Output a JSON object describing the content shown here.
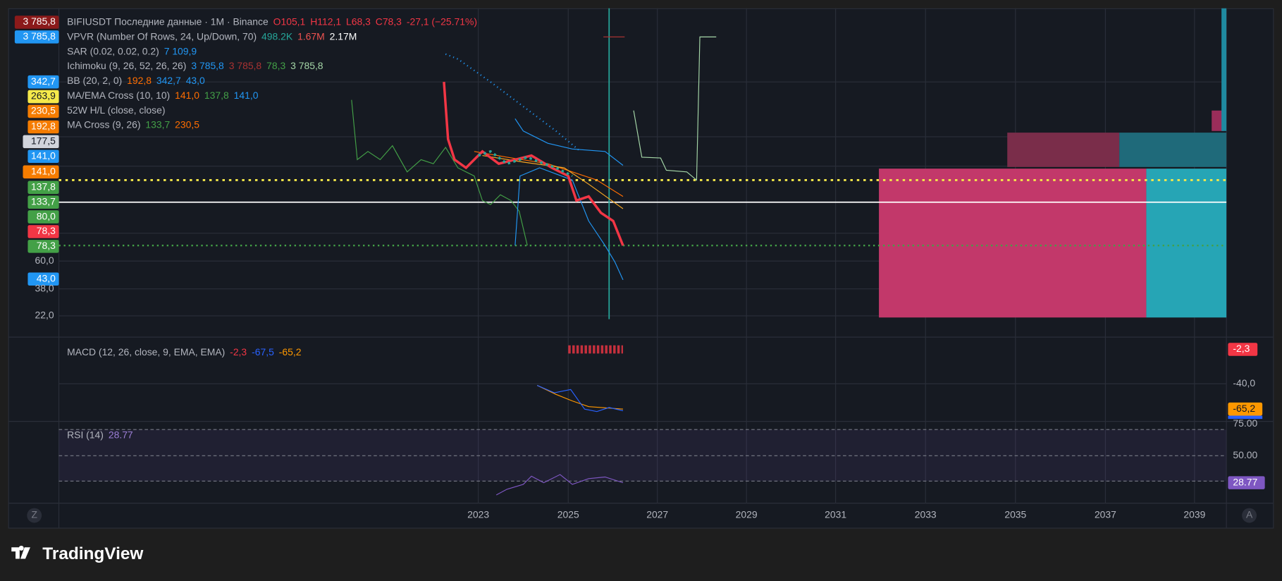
{
  "legend": [
    {
      "parts": [
        {
          "text": "BIFIUSDT Последние данные · 1M · Binance",
          "color": "#b2b5be"
        },
        {
          "text": "O105,1",
          "color": "#f23645"
        },
        {
          "text": "H112,1",
          "color": "#f23645"
        },
        {
          "text": "L68,3",
          "color": "#f23645"
        },
        {
          "text": "C78,3",
          "color": "#f23645"
        },
        {
          "text": "-27,1 (−25.71%)",
          "color": "#f23645"
        }
      ]
    },
    {
      "parts": [
        {
          "text": "VPVR (Number Of Rows, 24, Up/Down, 70)",
          "color": "#b2b5be"
        },
        {
          "text": "498.2K",
          "color": "#26a69a"
        },
        {
          "text": "1.67M",
          "color": "#ef5350"
        },
        {
          "text": "2.17M",
          "color": "#ffffff"
        }
      ]
    },
    {
      "parts": [
        {
          "text": "SAR (0.02, 0.02, 0.2)",
          "color": "#b2b5be"
        },
        {
          "text": "7 109,9",
          "color": "#2196f3"
        }
      ]
    },
    {
      "parts": [
        {
          "text": "Ichimoku (9, 26, 52, 26, 26)",
          "color": "#b2b5be"
        },
        {
          "text": "3 785,8",
          "color": "#2196f3"
        },
        {
          "text": "3 785,8",
          "color": "#a83232"
        },
        {
          "text": "78,3",
          "color": "#43a047"
        },
        {
          "text": "3 785,8",
          "color": "#a5d6a7"
        }
      ]
    },
    {
      "parts": [
        {
          "text": "BB (20, 2, 0)",
          "color": "#b2b5be"
        },
        {
          "text": "192,8",
          "color": "#ff6d00"
        },
        {
          "text": "342,7",
          "color": "#2196f3"
        },
        {
          "text": "43,0",
          "color": "#2196f3"
        }
      ]
    },
    {
      "parts": [
        {
          "text": "MA/EMA Cross (10, 10)",
          "color": "#b2b5be"
        },
        {
          "text": "141,0",
          "color": "#ff6d00"
        },
        {
          "text": "137,8",
          "color": "#43a047"
        },
        {
          "text": "141,0",
          "color": "#2196f3"
        }
      ]
    },
    {
      "parts": [
        {
          "text": "52W H/L (close, close)",
          "color": "#b2b5be"
        }
      ]
    },
    {
      "parts": [
        {
          "text": "MA Cross (9, 26)",
          "color": "#b2b5be"
        },
        {
          "text": "133,7",
          "color": "#43a047"
        },
        {
          "text": "230,5",
          "color": "#ff6d00"
        }
      ]
    }
  ],
  "price_labels": [
    {
      "text": "3 785,8",
      "bg": "#8b1a1a",
      "fg": "#ffffff"
    },
    {
      "text": "3 785,8",
      "bg": "#2196f3",
      "fg": "#ffffff"
    },
    {
      "text": "342,7",
      "bg": "#2196f3",
      "fg": "#ffffff"
    },
    {
      "text": "263,9",
      "bg": "#f5e94a",
      "fg": "#131722"
    },
    {
      "text": "230,5",
      "bg": "#f57c00",
      "fg": "#ffffff"
    },
    {
      "text": "192,8",
      "bg": "#f57c00",
      "fg": "#ffffff"
    },
    {
      "text": "177,5",
      "bg": "#d1d4dc",
      "fg": "#131722"
    },
    {
      "text": "141,0",
      "bg": "#2196f3",
      "fg": "#ffffff"
    },
    {
      "text": "141,0",
      "bg": "#f57c00",
      "fg": "#ffffff"
    },
    {
      "text": "137,8",
      "bg": "#43a047",
      "fg": "#ffffff"
    },
    {
      "text": "133,7",
      "bg": "#43a047",
      "fg": "#ffffff"
    },
    {
      "text": "80,0",
      "bg": "#43a047",
      "fg": "#ffffff"
    },
    {
      "text": "78,3",
      "bg": "#f23645",
      "fg": "#ffffff"
    },
    {
      "text": "78,3",
      "bg": "#43a047",
      "fg": "#ffffff"
    },
    {
      "text": "43,0",
      "bg": "#2196f3",
      "fg": "#ffffff"
    }
  ],
  "price_axis": [
    "60,0",
    "38,0",
    "22,0"
  ],
  "macd": {
    "title": "MACD (12, 26, close, 9, EMA, EMA)",
    "values": [
      {
        "text": "-2,3",
        "color": "#f23645"
      },
      {
        "text": "-67,5",
        "color": "#2962ff"
      },
      {
        "text": "-65,2",
        "color": "#ff9800"
      }
    ],
    "axis": [
      "-2,3",
      "-40,0",
      "-65,2"
    ]
  },
  "rsi": {
    "title": "RSI (14)",
    "value": "28.77",
    "axis": [
      "75.00",
      "50.00",
      "28.77"
    ]
  },
  "years": [
    "2023",
    "2025",
    "2027",
    "2029",
    "2031",
    "2033",
    "2035",
    "2037",
    "2039"
  ],
  "corner_left": "Z",
  "corner_right": "A",
  "logo": "TradingView"
}
